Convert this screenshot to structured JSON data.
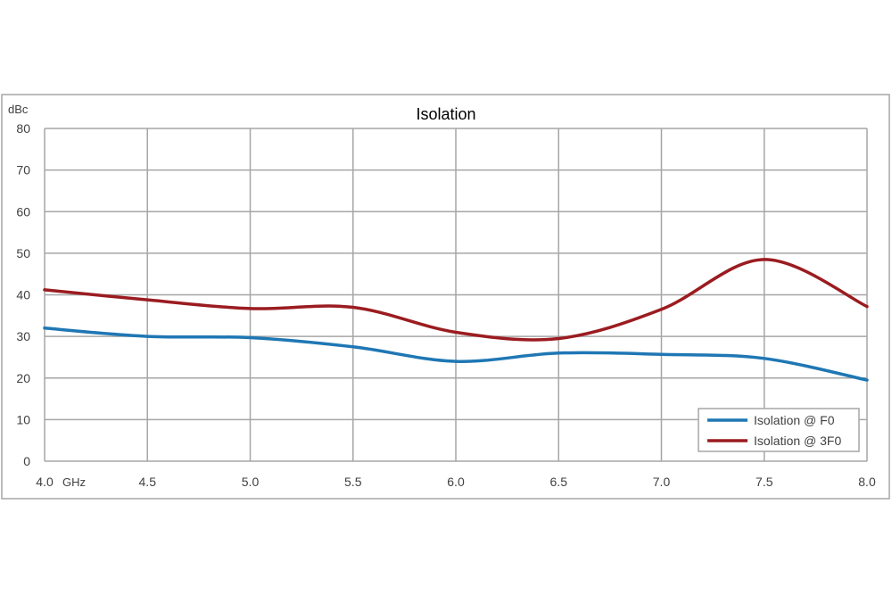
{
  "chart_data": {
    "type": "line",
    "title": "Isolation",
    "ylabel": "dBc",
    "x_unit": "GHz",
    "xlim": [
      4.0,
      8.0
    ],
    "ylim": [
      0,
      80
    ],
    "x_ticks": [
      4.0,
      4.5,
      5.0,
      5.5,
      6.0,
      6.5,
      7.0,
      7.5,
      8.0
    ],
    "x_tick_labels": [
      "4.0",
      "4.5",
      "5.0",
      "5.5",
      "6.0",
      "6.5",
      "7.0",
      "7.5",
      "8.0"
    ],
    "y_ticks": [
      0,
      10,
      20,
      30,
      40,
      50,
      60,
      70,
      80
    ],
    "y_tick_labels": [
      "0",
      "10",
      "20",
      "30",
      "40",
      "50",
      "60",
      "70",
      "80"
    ],
    "grid": true,
    "legend_position": "bottom-right",
    "series": [
      {
        "name": "Isolation @ F0",
        "color": "#1f77b4",
        "x": [
          4.0,
          4.5,
          5.0,
          5.5,
          6.0,
          6.5,
          7.0,
          7.5,
          8.0
        ],
        "y": [
          32,
          30,
          29.7,
          27.5,
          24,
          26,
          25.7,
          24.7,
          19.5
        ]
      },
      {
        "name": "Isolation @ 3F0",
        "color": "#9b1c20",
        "x": [
          4.0,
          4.5,
          5.0,
          5.5,
          6.0,
          6.5,
          7.0,
          7.5,
          8.0
        ],
        "y": [
          41.2,
          38.8,
          36.7,
          37,
          31,
          29.5,
          36.5,
          48.5,
          37.2
        ]
      }
    ]
  }
}
